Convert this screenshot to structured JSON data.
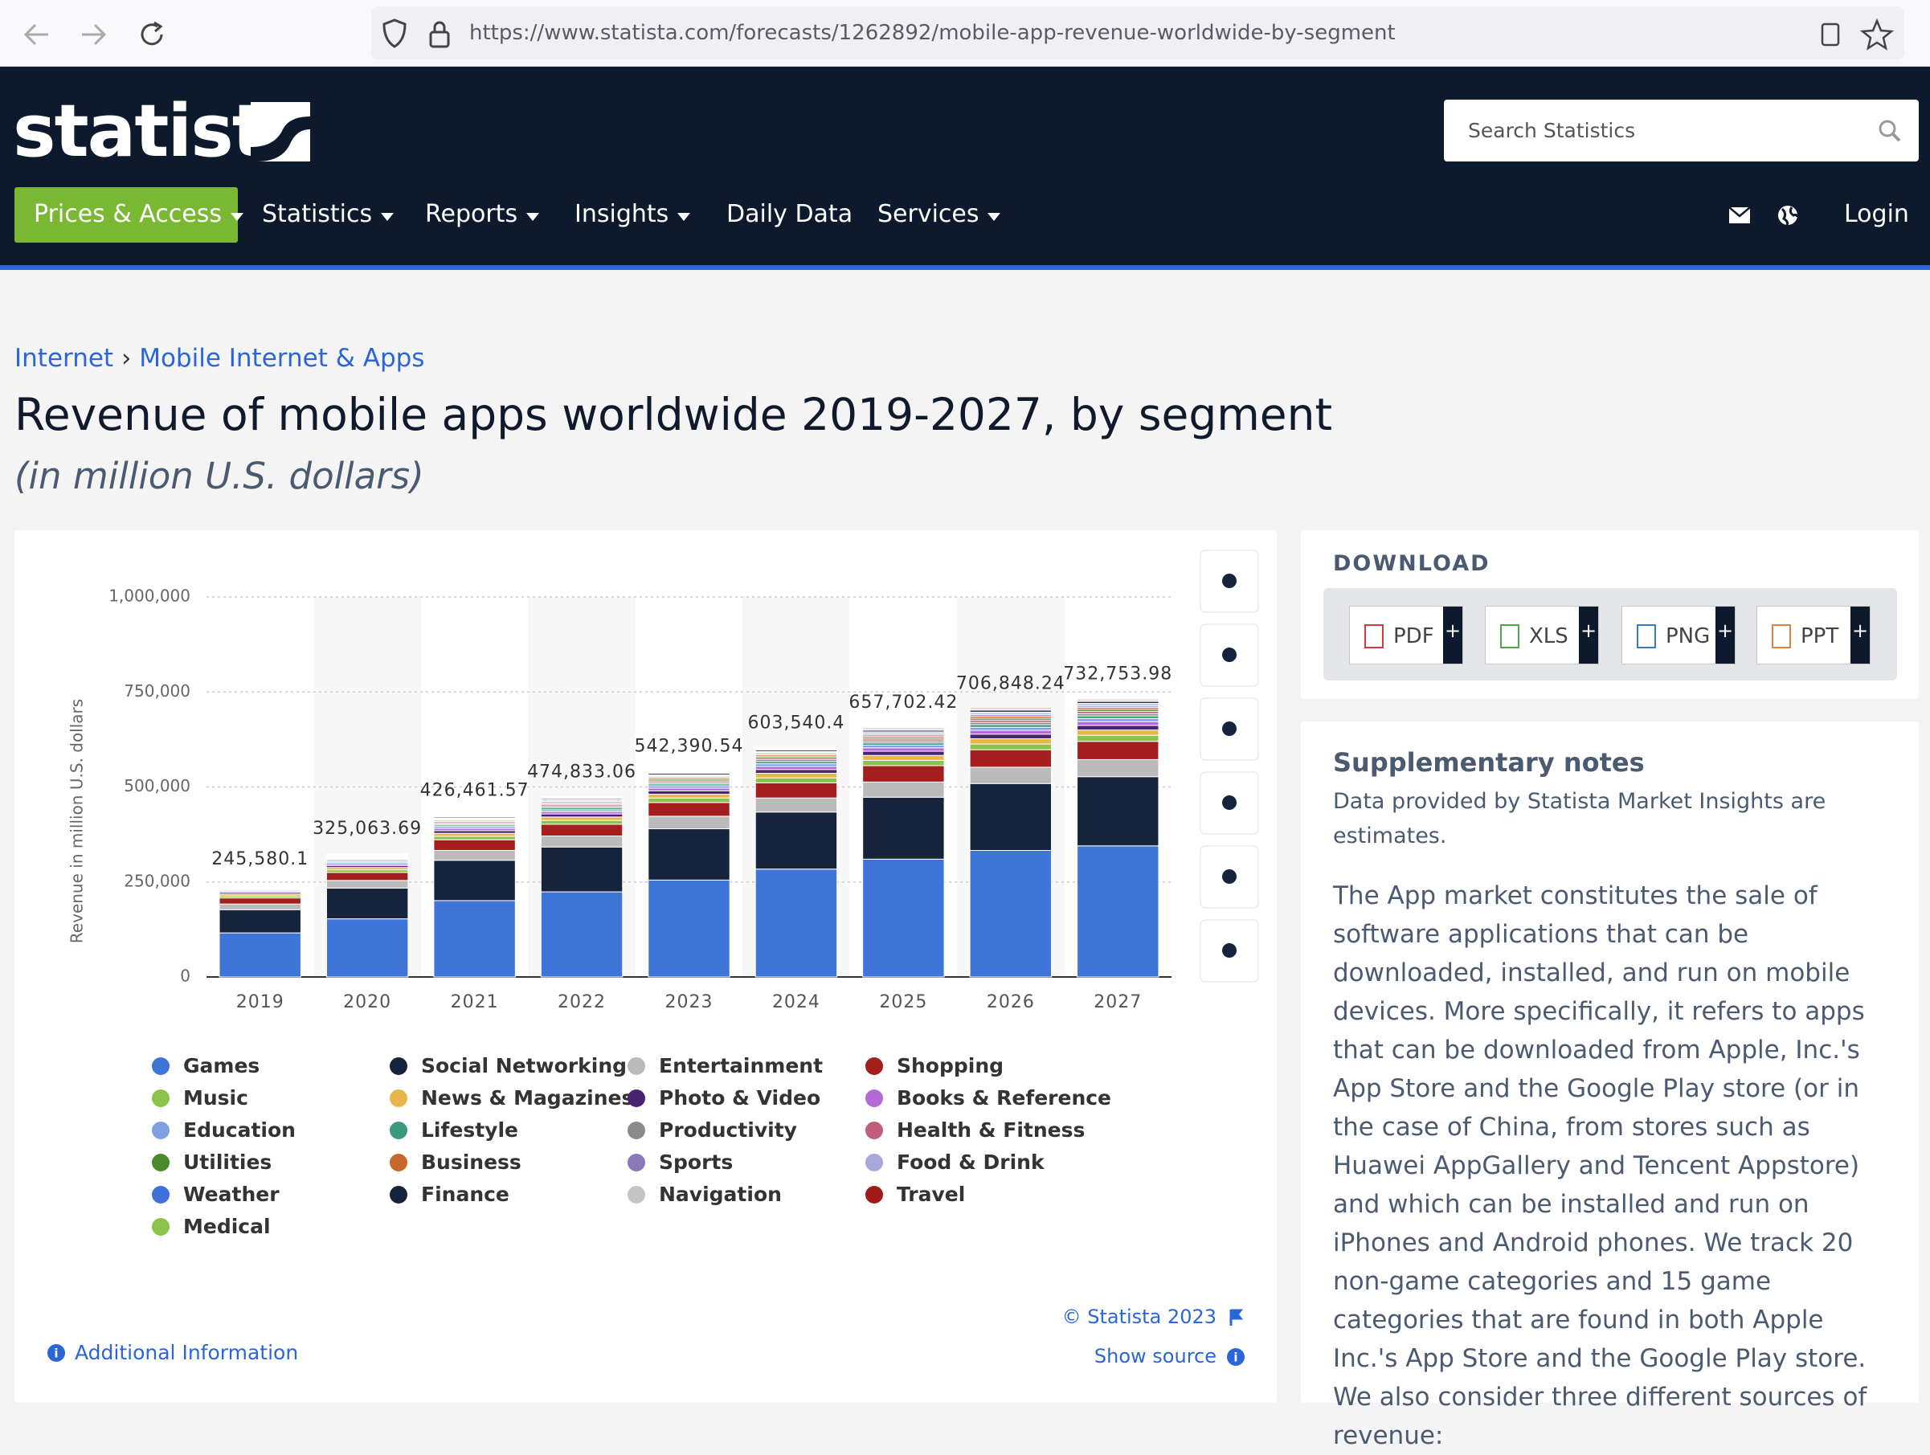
{
  "browser": {
    "url": "https://www.statista.com/forecasts/1262892/mobile-app-revenue-worldwide-by-segment"
  },
  "header": {
    "logo": "statista",
    "search_placeholder": "Search Statistics",
    "nav": [
      "Prices & Access",
      "Statistics",
      "Reports",
      "Insights",
      "Daily Data",
      "Services"
    ],
    "login": "Login"
  },
  "breadcrumb": {
    "items": [
      "Internet",
      "Mobile Internet & Apps"
    ],
    "separator": "›"
  },
  "page_title": "Revenue of mobile apps worldwide 2019-2027, by segment",
  "page_subtitle": "(in million U.S. dollars)",
  "chart_data": {
    "type": "stacked-bar",
    "y_label": "Revenue in million U.S. dollars",
    "categories": [
      "2019",
      "2020",
      "2021",
      "2022",
      "2023",
      "2024",
      "2025",
      "2026",
      "2027"
    ],
    "ylim": [
      0,
      1000000
    ],
    "yticks": [
      0,
      {
        "value": 250000,
        "label": "250,000"
      },
      {
        "value": 500000,
        "label": "500,000"
      },
      {
        "value": 750000,
        "label": "750,000"
      },
      {
        "value": 1000000,
        "label": "1,000,000"
      }
    ],
    "grid": true,
    "totals": {
      "values": [
        245580.1,
        325063.69,
        426461.57,
        474833.06,
        542390.54,
        603540.4,
        657702.42,
        706848.24,
        732753.98
      ],
      "value_labels": [
        "245,580.1",
        "325,063.69",
        "426,461.57",
        "474,833.06",
        "542,390.54",
        "603,540.4",
        "657,702.42",
        "706,848.24",
        "732,753.98"
      ]
    },
    "series": [
      {
        "name": "Games",
        "color": "#3f74d8",
        "values": [
          116000,
          153000,
          201000,
          224000,
          255000,
          284000,
          310000,
          333000,
          345000
        ]
      },
      {
        "name": "Social Networking",
        "color": "#15233d",
        "values": [
          61000,
          81000,
          106000,
          118000,
          135000,
          150000,
          163000,
          176000,
          182000
        ]
      },
      {
        "name": "Entertainment",
        "color": "#bababa",
        "values": [
          15000,
          20000,
          26000,
          29000,
          33000,
          37000,
          40000,
          43000,
          45000
        ]
      },
      {
        "name": "Shopping",
        "color": "#a51e1e",
        "values": [
          16000,
          21000,
          28000,
          31000,
          36000,
          40000,
          43000,
          46000,
          48000
        ]
      },
      {
        "name": "Music",
        "color": "#8bc34a",
        "values": [
          5000,
          7000,
          9000,
          10000,
          12000,
          13000,
          14000,
          15000,
          16000
        ]
      },
      {
        "name": "News & Magazines",
        "color": "#e8b54a",
        "values": [
          5000,
          6000,
          8000,
          9000,
          10000,
          12000,
          13000,
          14000,
          14000
        ]
      },
      {
        "name": "Photo & Video",
        "color": "#4a2370",
        "values": [
          4000,
          5000,
          7000,
          8000,
          9000,
          10000,
          11000,
          12000,
          12000
        ]
      },
      {
        "name": "Books & Reference",
        "color": "#b46bd8",
        "values": [
          3000,
          4000,
          6000,
          6000,
          7000,
          8000,
          9000,
          10000,
          10000
        ]
      },
      {
        "name": "Education",
        "color": "#7fa0e0",
        "values": [
          3000,
          4000,
          5000,
          5000,
          6000,
          7000,
          7000,
          8000,
          8000
        ]
      },
      {
        "name": "Lifestyle",
        "color": "#3a9a80",
        "values": [
          2000,
          3000,
          4000,
          5000,
          5000,
          6000,
          6000,
          7000,
          7000
        ]
      },
      {
        "name": "Productivity",
        "color": "#8a8a8a",
        "values": [
          2000,
          3000,
          3000,
          4000,
          4000,
          5000,
          5000,
          6000,
          6000
        ]
      },
      {
        "name": "Health & Fitness",
        "color": "#c06078",
        "values": [
          2000,
          3000,
          3000,
          4000,
          4000,
          5000,
          5000,
          6000,
          6000
        ]
      },
      {
        "name": "Utilities",
        "color": "#4a8a2a",
        "values": [
          2000,
          2000,
          3000,
          3000,
          4000,
          4000,
          4000,
          5000,
          5000
        ]
      },
      {
        "name": "Business",
        "color": "#c8682a",
        "values": [
          2000,
          2000,
          3000,
          3000,
          4000,
          4000,
          4000,
          5000,
          5000
        ]
      },
      {
        "name": "Sports",
        "color": "#8a78b8",
        "values": [
          1000,
          2000,
          2000,
          3000,
          3000,
          3000,
          4000,
          4000,
          4000
        ]
      },
      {
        "name": "Food & Drink",
        "color": "#a8a8d8",
        "values": [
          1000,
          2000,
          2000,
          3000,
          3000,
          3000,
          4000,
          4000,
          4000
        ]
      },
      {
        "name": "Weather",
        "color": "#3f6fd8",
        "values": [
          1000,
          1000,
          2000,
          2000,
          2000,
          2000,
          3000,
          3000,
          3000
        ]
      },
      {
        "name": "Finance",
        "color": "#15233d",
        "values": [
          2000,
          2000,
          3000,
          3000,
          4000,
          4000,
          4000,
          5000,
          5000
        ]
      },
      {
        "name": "Navigation",
        "color": "#c4c4c4",
        "values": [
          1000,
          1000,
          2000,
          2000,
          2000,
          2000,
          3000,
          3000,
          3000
        ]
      },
      {
        "name": "Travel",
        "color": "#a01c1c",
        "values": [
          1000,
          1000,
          2000,
          2000,
          2000,
          2000,
          3000,
          3000,
          3000
        ]
      },
      {
        "name": "Medical",
        "color": "#8bc34a",
        "values": [
          1000,
          1000,
          1000,
          1000,
          1000,
          2000,
          2000,
          2000,
          2000
        ]
      }
    ]
  },
  "chart_footer": {
    "copyright": "© Statista 2023",
    "show_source": "Show source",
    "additional_information": "Additional Information"
  },
  "download": {
    "title": "DOWNLOAD",
    "formats": [
      "PDF",
      "XLS",
      "PNG",
      "PPT"
    ],
    "plus": "+"
  },
  "notes": {
    "title": "Supplementary notes",
    "intro": "Data provided by Statista Market Insights are estimates.",
    "body": "The App market constitutes the sale of software applications that can be downloaded, installed, and run on mobile devices. More specifically, it refers to apps that can be downloaded from Apple, Inc.'s App Store and the Google Play store (or in the case of China, from stores such as Huawei AppGallery and Tencent Appstore) and which can be installed and run on iPhones and Android phones. We track 20 non-game categories and 15 game categories that are found in both Apple Inc.'s App Store and the Google Play store. We also consider three different sources of revenue:"
  }
}
